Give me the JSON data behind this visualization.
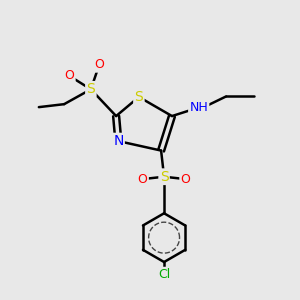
{
  "bg_color": "#e8e8e8",
  "atom_colors": {
    "S": "#cccc00",
    "N": "#0000ff",
    "O": "#ff0000",
    "Cl": "#00aa00",
    "C": "#000000",
    "H": "#555555"
  },
  "bond_color": "#000000",
  "title": ""
}
